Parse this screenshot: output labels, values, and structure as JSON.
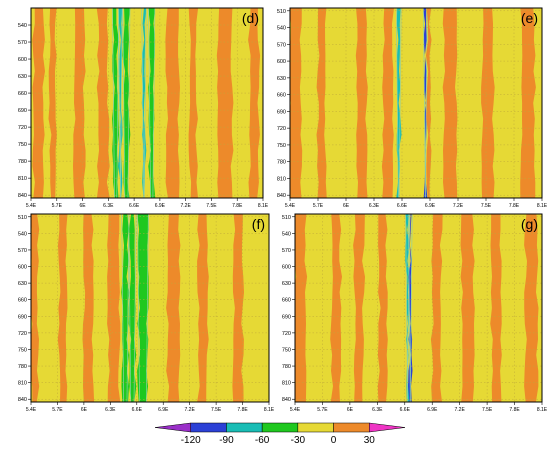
{
  "figure": {
    "colors": {
      "orange": "#ed8a2a",
      "yellow": "#e6d935",
      "green": "#1fc81f",
      "teal": "#19bdb5",
      "blue": "#2b40d6",
      "purple": "#9a2fc8",
      "magenta": "#ee34c4",
      "contour": "#8fd2a8",
      "grid": "#bfa93a"
    },
    "colorbar": {
      "labels": [
        "-120",
        "-90",
        "-60",
        "-30",
        "0",
        "30"
      ],
      "colors": [
        "#9a2fc8",
        "#2b40d6",
        "#19bdb5",
        "#1fc81f",
        "#e6d935",
        "#ed8a2a",
        "#ee34c4"
      ]
    }
  },
  "chart_data": [
    {
      "type": "heatmap",
      "panel_label": "(d)",
      "y_ticks": [
        "540",
        "570",
        "600",
        "630",
        "660",
        "690",
        "720",
        "750",
        "780",
        "810",
        "840"
      ],
      "x_ticks": [
        "5.4E",
        "5.7E",
        "6E",
        "6.3E",
        "6.6E",
        "6.9E",
        "7.2E",
        "7.5E",
        "7.8E",
        "8.1E"
      ],
      "xlim": [
        5.4,
        8.1
      ],
      "ylim": [
        510,
        845
      ],
      "bands": [
        {
          "x": [
            5.43,
            5.55
          ],
          "level": 30
        },
        {
          "x": [
            5.62,
            5.69
          ],
          "level": 30
        },
        {
          "x": [
            5.9,
            6.02
          ],
          "level": 30
        },
        {
          "x": [
            6.18,
            6.3
          ],
          "level": 30
        },
        {
          "x": [
            6.36,
            6.41
          ],
          "level": -30
        },
        {
          "x": [
            6.43,
            6.45
          ],
          "level": -60
        },
        {
          "x": [
            6.48,
            6.54
          ],
          "level": -30
        },
        {
          "x": [
            6.7,
            6.73
          ],
          "level": -60
        },
        {
          "x": [
            6.78,
            6.83
          ],
          "level": -30
        },
        {
          "x": [
            6.98,
            7.12
          ],
          "level": 30
        },
        {
          "x": [
            7.25,
            7.33
          ],
          "level": 30
        },
        {
          "x": [
            7.58,
            7.74
          ],
          "level": 30
        },
        {
          "x": [
            7.94,
            8.05
          ],
          "level": 30
        }
      ]
    },
    {
      "type": "heatmap",
      "panel_label": "(e)",
      "y_ticks": [
        "510",
        "540",
        "570",
        "600",
        "630",
        "660",
        "690",
        "720",
        "750",
        "780",
        "810",
        "840"
      ],
      "x_ticks": [
        "5.4E",
        "5.7E",
        "6E",
        "6.3E",
        "6.6E",
        "6.9E",
        "7.2E",
        "7.5E",
        "7.8E",
        "8.1E"
      ],
      "xlim": [
        5.4,
        8.1
      ],
      "ylim": [
        505,
        845
      ],
      "bands": [
        {
          "x": [
            5.4,
            5.52
          ],
          "level": 30
        },
        {
          "x": [
            5.7,
            5.78
          ],
          "level": 30
        },
        {
          "x": [
            6.12,
            6.22
          ],
          "level": 30
        },
        {
          "x": [
            6.4,
            6.5
          ],
          "level": 30
        },
        {
          "x": [
            6.55,
            6.58
          ],
          "level": -60
        },
        {
          "x": [
            6.84,
            6.86
          ],
          "level": -90
        },
        {
          "x": [
            6.87,
            6.9
          ],
          "level": 60
        },
        {
          "x": [
            7.05,
            7.18
          ],
          "level": 30
        },
        {
          "x": [
            7.46,
            7.58
          ],
          "level": 30
        },
        {
          "x": [
            7.88,
            8.02
          ],
          "level": 30
        }
      ]
    },
    {
      "type": "heatmap",
      "panel_label": "(f)",
      "y_ticks": [
        "510",
        "540",
        "570",
        "600",
        "630",
        "660",
        "690",
        "720",
        "750",
        "780",
        "810",
        "840"
      ],
      "x_ticks": [
        "5.4E",
        "5.7E",
        "6E",
        "6.3E",
        "6.6E",
        "6.9E",
        "7.2E",
        "7.5E",
        "7.8E",
        "8.1E"
      ],
      "xlim": [
        5.4,
        8.1
      ],
      "ylim": [
        505,
        845
      ],
      "bands": [
        {
          "x": [
            5.4,
            5.48
          ],
          "level": 30
        },
        {
          "x": [
            5.72,
            5.8
          ],
          "level": 30
        },
        {
          "x": [
            6.0,
            6.1
          ],
          "level": 30
        },
        {
          "x": [
            6.28,
            6.4
          ],
          "level": 30
        },
        {
          "x": [
            6.44,
            6.5
          ],
          "level": -30
        },
        {
          "x": [
            6.52,
            6.58
          ],
          "level": -30
        },
        {
          "x": [
            6.62,
            6.72
          ],
          "level": -30
        },
        {
          "x": [
            6.95,
            7.08
          ],
          "level": 30
        },
        {
          "x": [
            7.3,
            7.4
          ],
          "level": 30
        },
        {
          "x": [
            7.7,
            7.8
          ],
          "level": 30
        }
      ]
    },
    {
      "type": "heatmap",
      "panel_label": "(g)",
      "y_ticks": [
        "510",
        "540",
        "570",
        "600",
        "630",
        "660",
        "690",
        "720",
        "750",
        "780",
        "810",
        "840"
      ],
      "x_ticks": [
        "5.4E",
        "5.7E",
        "6E",
        "6.3E",
        "6.6E",
        "6.9E",
        "7.2E",
        "7.5E",
        "7.8E",
        "8.1E"
      ],
      "xlim": [
        5.4,
        8.1
      ],
      "ylim": [
        505,
        845
      ],
      "bands": [
        {
          "x": [
            5.4,
            5.52
          ],
          "level": 30
        },
        {
          "x": [
            5.8,
            5.9
          ],
          "level": 30
        },
        {
          "x": [
            6.05,
            6.15
          ],
          "level": 30
        },
        {
          "x": [
            6.32,
            6.4
          ],
          "level": 30
        },
        {
          "x": [
            6.62,
            6.64
          ],
          "level": -60
        },
        {
          "x": [
            6.65,
            6.67
          ],
          "level": -90
        },
        {
          "x": [
            6.9,
            7.0
          ],
          "level": 30
        },
        {
          "x": [
            7.22,
            7.35
          ],
          "level": 30
        },
        {
          "x": [
            7.55,
            7.65
          ],
          "level": 30
        },
        {
          "x": [
            7.92,
            8.05
          ],
          "level": 30
        }
      ]
    }
  ]
}
